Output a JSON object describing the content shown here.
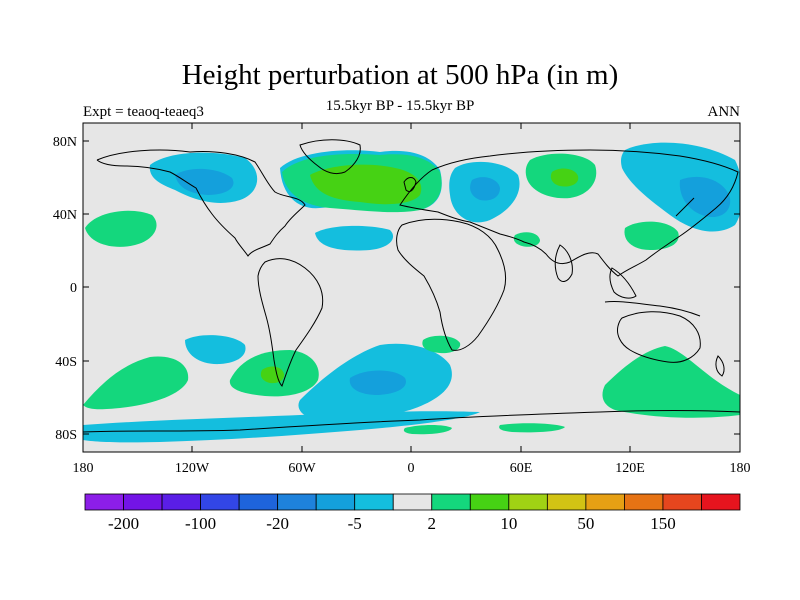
{
  "title": "Height perturbation at 500 hPa (in m)",
  "subtitle": "15.5kyr BP - 15.5kyr BP",
  "left_label": "Expt = teaoq-teaeq3",
  "right_label": "ANN",
  "lat_ticks": [
    "80N",
    "40N",
    "0",
    "40S",
    "80S"
  ],
  "lon_ticks": [
    "180",
    "120W",
    "60W",
    "0",
    "60E",
    "120E",
    "180"
  ],
  "colorbar": {
    "colors": [
      "#8c1ee8",
      "#7314e6",
      "#5a1ee6",
      "#3246e6",
      "#1e64dc",
      "#1e82dc",
      "#14a0dc",
      "#14bede",
      "#e6e6e6",
      "#14d77d",
      "#46d214",
      "#a0d214",
      "#d2c314",
      "#e6a014",
      "#e67314",
      "#e6461e",
      "#e6141e"
    ],
    "labels": [
      "-200",
      "-100",
      "-20",
      "-5",
      "2",
      "10",
      "50",
      "150"
    ]
  },
  "map": {
    "background": "#e6e6e6",
    "positive_color": "#14d77d",
    "strong_positive_color": "#46d214",
    "negative_color": "#14bede",
    "strong_negative_color": "#14a0dc"
  }
}
